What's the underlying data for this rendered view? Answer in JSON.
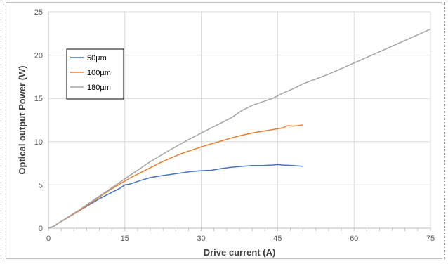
{
  "chart_data": {
    "type": "line",
    "xlabel": "Drive current (A)",
    "ylabel": "Optical output Power (W)",
    "xlim": [
      0,
      75
    ],
    "ylim": [
      0,
      25
    ],
    "xticks": [
      0,
      15,
      30,
      45,
      60,
      75
    ],
    "yticks": [
      0,
      5,
      10,
      15,
      20,
      25
    ],
    "grid": true,
    "legend_position": "top-left",
    "series": [
      {
        "name": "50µm",
        "color": "#4472c4",
        "x": [
          0,
          1,
          2,
          4,
          6,
          8,
          10,
          12,
          14,
          15,
          16,
          18,
          20,
          22,
          25,
          28,
          30,
          32,
          34,
          36,
          38,
          40,
          42,
          44,
          45,
          46,
          48,
          50
        ],
        "y": [
          0,
          0.2,
          0.6,
          1.3,
          2.0,
          2.7,
          3.4,
          4.0,
          4.6,
          5.0,
          5.1,
          5.5,
          5.85,
          6.05,
          6.3,
          6.55,
          6.65,
          6.7,
          6.9,
          7.05,
          7.15,
          7.25,
          7.25,
          7.3,
          7.35,
          7.3,
          7.25,
          7.15
        ]
      },
      {
        "name": "100µm",
        "color": "#ed7d31",
        "x": [
          0,
          1,
          2,
          4,
          6,
          8,
          10,
          12,
          14,
          16,
          18,
          20,
          22,
          24,
          26,
          28,
          30,
          32,
          34,
          36,
          38,
          40,
          42,
          44,
          46,
          47,
          48,
          49,
          50
        ],
        "y": [
          0,
          0.2,
          0.6,
          1.3,
          2.0,
          2.8,
          3.6,
          4.4,
          5.1,
          5.8,
          6.4,
          7.0,
          7.6,
          8.1,
          8.6,
          9.0,
          9.4,
          9.75,
          10.1,
          10.45,
          10.75,
          11.0,
          11.2,
          11.4,
          11.6,
          11.85,
          11.8,
          11.85,
          11.95
        ]
      },
      {
        "name": "180µm",
        "color": "#a5a5a5",
        "x": [
          0,
          1,
          2,
          4,
          6,
          8,
          10,
          12,
          14,
          16,
          18,
          20,
          22,
          24,
          26,
          28,
          30,
          32,
          34,
          36,
          38,
          40,
          42,
          44,
          46,
          48,
          50,
          55,
          60,
          65,
          70,
          75
        ],
        "y": [
          0,
          0.2,
          0.6,
          1.35,
          2.1,
          2.9,
          3.7,
          4.5,
          5.3,
          6.1,
          6.9,
          7.7,
          8.4,
          9.1,
          9.75,
          10.4,
          11.0,
          11.6,
          12.2,
          12.8,
          13.6,
          14.2,
          14.6,
          15.0,
          15.6,
          16.1,
          16.7,
          17.8,
          19.1,
          20.4,
          21.7,
          23.0
        ]
      }
    ]
  }
}
